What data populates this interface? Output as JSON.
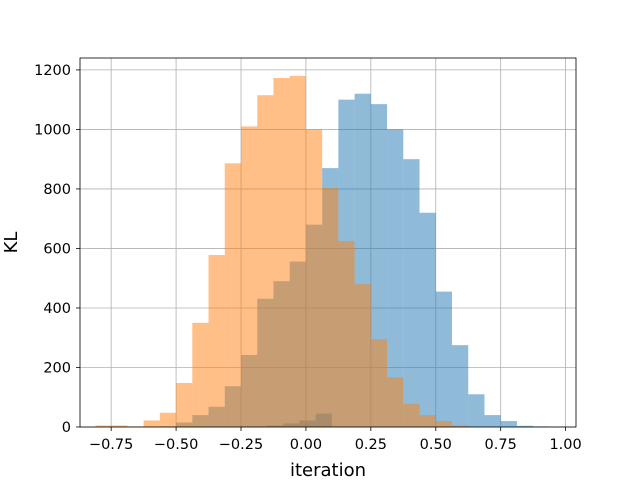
{
  "chart_data": {
    "type": "bar",
    "subtype": "overlapping-histogram",
    "title": "",
    "xlabel": "iteration",
    "ylabel": "KL",
    "xlim": [
      -0.87,
      1.04
    ],
    "ylim": [
      0,
      1240
    ],
    "xticks": [
      -0.75,
      -0.5,
      -0.25,
      0.0,
      0.25,
      0.5,
      0.75,
      1.0
    ],
    "xtick_labels": [
      "−0.75",
      "−0.50",
      "−0.25",
      "0.00",
      "0.25",
      "0.50",
      "0.75",
      "1.00"
    ],
    "yticks": [
      0,
      200,
      400,
      600,
      800,
      1000,
      1200
    ],
    "ytick_labels": [
      "0",
      "200",
      "400",
      "600",
      "800",
      "1000",
      "1200"
    ],
    "grid": true,
    "legend": "none",
    "bin_width": 0.0625,
    "series": [
      {
        "color": "#1f77b4",
        "alpha": 0.5,
        "bins": [
          [
            -0.15,
            -0.0875,
            5
          ],
          [
            -0.0875,
            -0.025,
            12
          ],
          [
            -0.025,
            0.0375,
            22
          ],
          [
            0.0375,
            0.1,
            45
          ],
          [
            -0.5625,
            -0.5,
            2
          ],
          [
            -0.5,
            -0.4375,
            15
          ],
          [
            -0.4375,
            -0.375,
            40
          ],
          [
            -0.375,
            -0.3125,
            68
          ],
          [
            -0.3125,
            -0.25,
            137
          ],
          [
            -0.25,
            -0.1875,
            242
          ],
          [
            -0.1875,
            -0.125,
            431
          ],
          [
            -0.125,
            -0.0625,
            490
          ],
          [
            -0.0625,
            0.0,
            556
          ],
          [
            0.0,
            0.0625,
            680
          ],
          [
            0.0625,
            0.125,
            870
          ],
          [
            0.125,
            0.1875,
            1100
          ],
          [
            0.1875,
            0.25,
            1120
          ],
          [
            0.25,
            0.3125,
            1085
          ],
          [
            0.3125,
            0.375,
            1000
          ],
          [
            0.375,
            0.4375,
            900
          ],
          [
            0.4375,
            0.5,
            720
          ],
          [
            0.5,
            0.5625,
            455
          ],
          [
            0.5625,
            0.625,
            275
          ],
          [
            0.625,
            0.6875,
            110
          ],
          [
            0.6875,
            0.75,
            40
          ],
          [
            0.75,
            0.8125,
            20
          ],
          [
            0.8125,
            0.875,
            4
          ],
          [
            0.875,
            0.9375,
            2
          ],
          [
            0.9375,
            1.0,
            1
          ]
        ]
      },
      {
        "color": "#ff7f0e",
        "alpha": 0.5,
        "bins": [
          [
            -0.81,
            -0.75,
            5
          ],
          [
            -0.75,
            -0.6875,
            5
          ],
          [
            -0.6875,
            -0.625,
            2
          ],
          [
            -0.625,
            -0.5625,
            22
          ],
          [
            -0.5625,
            -0.5,
            48
          ],
          [
            -0.5,
            -0.4375,
            148
          ],
          [
            -0.4375,
            -0.375,
            350
          ],
          [
            -0.375,
            -0.3125,
            578
          ],
          [
            -0.3125,
            -0.25,
            886
          ],
          [
            -0.25,
            -0.1875,
            1010
          ],
          [
            -0.1875,
            -0.125,
            1115
          ],
          [
            -0.125,
            -0.0625,
            1173
          ],
          [
            -0.0625,
            0.0,
            1180
          ],
          [
            0.0,
            0.0625,
            1000
          ],
          [
            0.0625,
            0.125,
            803
          ],
          [
            0.125,
            0.1875,
            625
          ],
          [
            0.1875,
            0.25,
            480
          ],
          [
            0.25,
            0.3125,
            295
          ],
          [
            0.3125,
            0.375,
            167
          ],
          [
            0.375,
            0.4375,
            78
          ],
          [
            0.4375,
            0.5,
            40
          ],
          [
            0.5,
            0.5625,
            20
          ],
          [
            0.5625,
            0.625,
            5
          ],
          [
            0.625,
            0.6875,
            1
          ]
        ]
      }
    ]
  }
}
